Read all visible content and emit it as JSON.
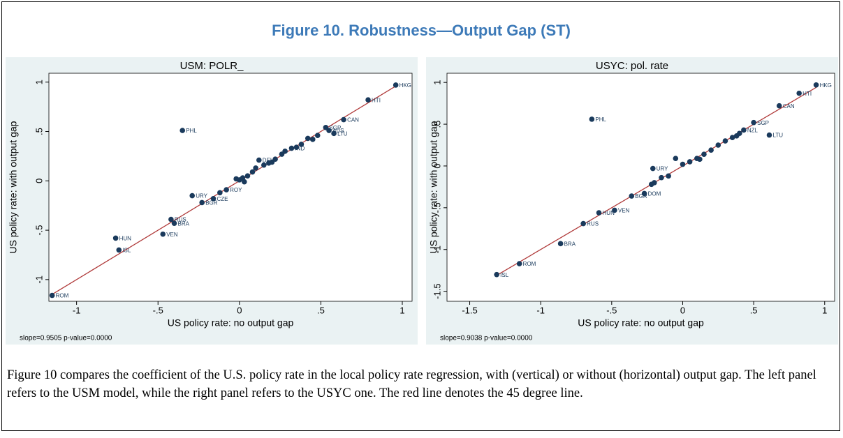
{
  "figure_title": "Figure 10. Robustness—Output Gap (ST)",
  "caption": "Figure 10 compares the coefficient of the U.S. policy rate in the local policy rate regression, with (vertical) or without (horizontal) output gap. The left panel refers to the USM model, while the right panel refers to the USYC one. The red line denotes the 45 degree line.",
  "chart_data": [
    {
      "type": "scatter",
      "title": "USM: POLR_",
      "xlabel": "US policy rate: no output gap",
      "ylabel": "US policy rate: with output gap",
      "note": "slope=0.9505 p-value=0.0000",
      "color": "#1a3a5c",
      "line_color": "#b03a3a",
      "xlim": [
        -1.17,
        1.06
      ],
      "ylim": [
        -1.22,
        1.09
      ],
      "xticks": [
        -1,
        {
          "value": -0.5,
          "label": "-.5"
        },
        0,
        {
          "value": 0.5,
          "label": ".5"
        },
        1
      ],
      "yticks": [
        -1,
        {
          "value": -0.5,
          "label": "-.5"
        },
        0,
        {
          "value": 0.5,
          "label": ".5"
        },
        1
      ],
      "x": [
        0.96,
        0.79,
        0.64,
        0.53,
        0.55,
        0.58,
        -0.35,
        -0.29,
        -1.15,
        -0.74,
        -0.76,
        -0.47,
        -0.42,
        -0.4,
        -0.23,
        0.12,
        0.32,
        -0.16,
        -0.08,
        -0.12,
        0.0,
        0.02,
        0.05,
        0.08,
        0.15,
        0.18,
        0.22,
        0.26,
        0.28,
        0.35,
        0.38,
        0.42,
        0.45,
        0.48,
        0.03,
        0.1,
        -0.02,
        0.2
      ],
      "y": [
        0.97,
        0.82,
        0.62,
        0.54,
        0.51,
        0.48,
        0.51,
        -0.15,
        -1.16,
        -0.7,
        -0.58,
        -0.54,
        -0.39,
        -0.43,
        -0.22,
        0.21,
        0.33,
        -0.18,
        -0.09,
        -0.12,
        0.01,
        0.03,
        0.05,
        0.09,
        0.16,
        0.18,
        0.22,
        0.27,
        0.3,
        0.34,
        0.37,
        0.43,
        0.42,
        0.46,
        -0.01,
        0.13,
        0.02,
        0.19
      ],
      "point_labels": [
        "HKG",
        "HTI",
        "CAN",
        "SGP",
        "AUS",
        "LTU",
        "PHL",
        "URY",
        "ROM",
        "ISL",
        "HUN",
        "VEN",
        "RUS",
        "BRA",
        "BGR",
        "DEU",
        "IND",
        "CZE",
        "ROY",
        null,
        null,
        null,
        null,
        null,
        null,
        null,
        null,
        null,
        null,
        null,
        null,
        null,
        null,
        null,
        null,
        null,
        null,
        null
      ]
    },
    {
      "type": "scatter",
      "title": "USYC: pol. rate",
      "xlabel": "US policy rate: no output gap",
      "ylabel": "US policy rate: with output gap",
      "note": "slope=0.9038 p-value=0.0000",
      "color": "#1a3a5c",
      "line_color": "#b03a3a",
      "xlim": [
        -1.66,
        1.07
      ],
      "ylim": [
        -1.62,
        1.11
      ],
      "xticks": [
        -1.5,
        -1,
        {
          "value": -0.5,
          "label": "-.5"
        },
        0,
        {
          "value": 0.5,
          "label": ".5"
        },
        1
      ],
      "yticks": [
        -1.5,
        -1,
        {
          "value": -0.5,
          "label": "-.5"
        },
        0,
        {
          "value": 0.5,
          "label": ".5"
        },
        1
      ],
      "x": [
        0.94,
        0.82,
        0.68,
        0.5,
        0.61,
        -0.64,
        -0.21,
        -0.27,
        -0.36,
        -0.59,
        -0.48,
        -0.7,
        -0.86,
        -1.15,
        -1.31,
        -0.05,
        0.43,
        -0.2,
        -0.15,
        -0.1,
        0.0,
        0.05,
        0.1,
        0.15,
        0.2,
        0.25,
        0.3,
        0.35,
        0.38,
        0.4,
        0.12,
        -0.22
      ],
      "y": [
        0.97,
        0.87,
        0.72,
        0.52,
        0.37,
        0.56,
        -0.03,
        -0.33,
        -0.36,
        -0.56,
        -0.53,
        -0.69,
        -0.93,
        -1.17,
        -1.3,
        0.09,
        0.43,
        -0.2,
        -0.14,
        -0.12,
        0.02,
        0.05,
        0.09,
        0.14,
        0.19,
        0.25,
        0.3,
        0.34,
        0.36,
        0.39,
        0.08,
        -0.22
      ],
      "point_labels": [
        "HKG",
        "HTI",
        "CAN",
        "SGP",
        "LTU",
        "PHL",
        "URY",
        "DOM",
        "BGR",
        "HUN",
        "VEN",
        "RUS",
        "BRA",
        "ROM",
        "ISL",
        null,
        "NZL",
        null,
        null,
        null,
        null,
        null,
        null,
        null,
        null,
        null,
        null,
        null,
        null,
        null,
        null,
        null
      ]
    }
  ]
}
